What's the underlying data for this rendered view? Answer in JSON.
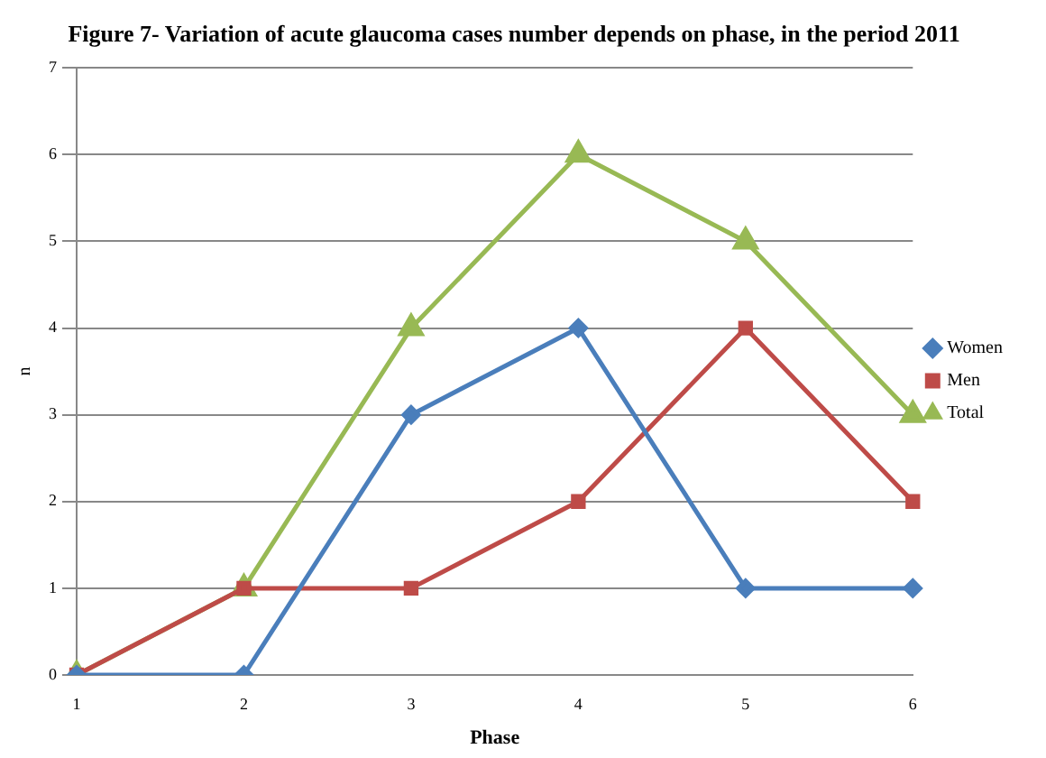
{
  "chart_data": {
    "type": "line",
    "title": "Figure 7- Variation of acute glaucoma cases number depends on phase, in the period 2011",
    "xlabel": "Phase",
    "ylabel": "n",
    "categories": [
      "1",
      "2",
      "3",
      "4",
      "5",
      "6"
    ],
    "series": [
      {
        "name": "Women",
        "color": "#4a7ebb",
        "marker": "diamond",
        "values": [
          0,
          0,
          3,
          4,
          1,
          1
        ]
      },
      {
        "name": "Men",
        "color": "#be4b48",
        "marker": "square",
        "values": [
          0,
          1,
          1,
          2,
          4,
          2
        ]
      },
      {
        "name": "Total",
        "color": "#98b954",
        "marker": "triangle",
        "values": [
          0,
          1,
          4,
          6,
          5,
          3
        ]
      }
    ],
    "ylim": [
      0,
      7
    ],
    "yticks": [
      0,
      1,
      2,
      3,
      4,
      5,
      6,
      7
    ],
    "grid": "y",
    "legend": "right",
    "line_style": "solid"
  }
}
